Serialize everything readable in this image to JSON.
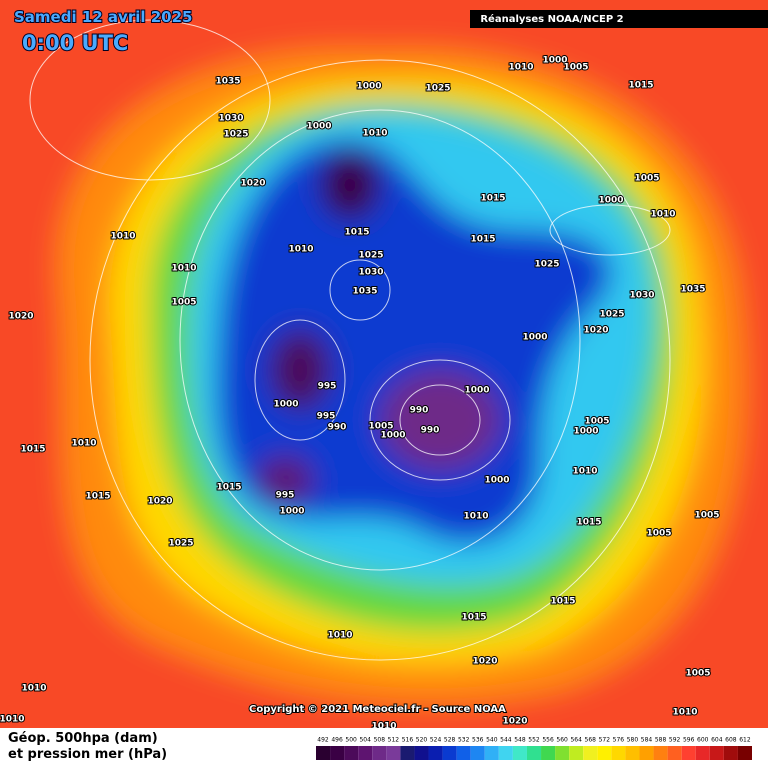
{
  "header": {
    "title": "Samedi 12 avril 2025",
    "time": "0:00 UTC",
    "source": "Réanalyses NOAA/NCEP 2"
  },
  "copyright": "Copyright © 2021 Meteociel.fr - Source NOAA",
  "legend": {
    "line1": "Géop. 500hpa (dam)",
    "line2": "et pression mer (hPa)",
    "scale": [
      492,
      496,
      500,
      504,
      508,
      512,
      516,
      520,
      524,
      528,
      532,
      536,
      540,
      544,
      548,
      552,
      556,
      560,
      564,
      568,
      572,
      576,
      580,
      584,
      588,
      592,
      596,
      600,
      604,
      608,
      612
    ],
    "colors": [
      "#2a0030",
      "#3a0044",
      "#4c0a5a",
      "#5e1470",
      "#6e2a88",
      "#7a3a9a",
      "#1a1a70",
      "#10108e",
      "#0a1eb0",
      "#0a3ad0",
      "#1060e8",
      "#1e86f2",
      "#30b0f6",
      "#40d4f0",
      "#40e8c8",
      "#30e090",
      "#40d850",
      "#80e030",
      "#c0ec20",
      "#f0f020",
      "#fff000",
      "#ffd800",
      "#ffbf00",
      "#ffa000",
      "#ff8010",
      "#ff6020",
      "#ff4030",
      "#e82828",
      "#c81818",
      "#a00c0c",
      "#780000"
    ]
  },
  "pressure_labels": [
    1035,
    1030,
    1025,
    1000,
    1025,
    1010,
    1000,
    1005,
    1015,
    1000,
    1010,
    1020,
    1015,
    1005,
    1000,
    1010,
    1010,
    1015,
    1010,
    1015,
    1025,
    1025,
    1030,
    1010,
    1035,
    1030,
    1035,
    1005,
    1020,
    1025,
    1020,
    1000,
    995,
    1000,
    990,
    1000,
    995,
    990,
    1005,
    1000,
    990,
    1005,
    1000,
    1010,
    1015,
    1010,
    1000,
    1015,
    995,
    1015,
    1020,
    1000,
    1010,
    1005,
    1015,
    1005,
    1025,
    1015,
    1015,
    1010,
    1020,
    1005,
    1010,
    1010,
    1010,
    1010,
    1020
  ]
}
